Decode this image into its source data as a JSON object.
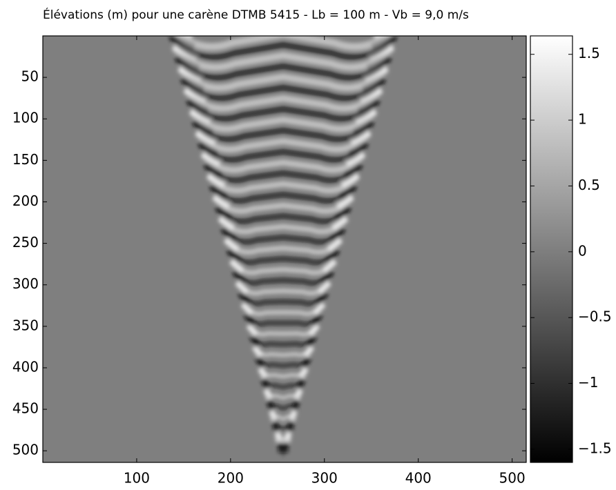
{
  "chart_data": {
    "type": "heatmap",
    "title": "Élévations (m) pour une carène DTMB 5415 - Lb = 100 m - Vb =  9,0 m/s",
    "xlim": [
      0,
      515
    ],
    "xticks": [
      100,
      200,
      300,
      400,
      500
    ],
    "ylim": [
      514,
      0
    ],
    "yticks": [
      50,
      100,
      150,
      200,
      250,
      300,
      350,
      400,
      450,
      500
    ],
    "colorbar": {
      "clim": [
        -1.6,
        1.64
      ],
      "cmap": [
        "#000000",
        "#ffffff"
      ],
      "ticks": [
        {
          "value": -1.5,
          "label": "−1.5"
        },
        {
          "value": -1,
          "label": "−1"
        },
        {
          "value": -0.5,
          "label": "−0.5"
        },
        0,
        0.5,
        1,
        1.5
      ]
    }
  }
}
